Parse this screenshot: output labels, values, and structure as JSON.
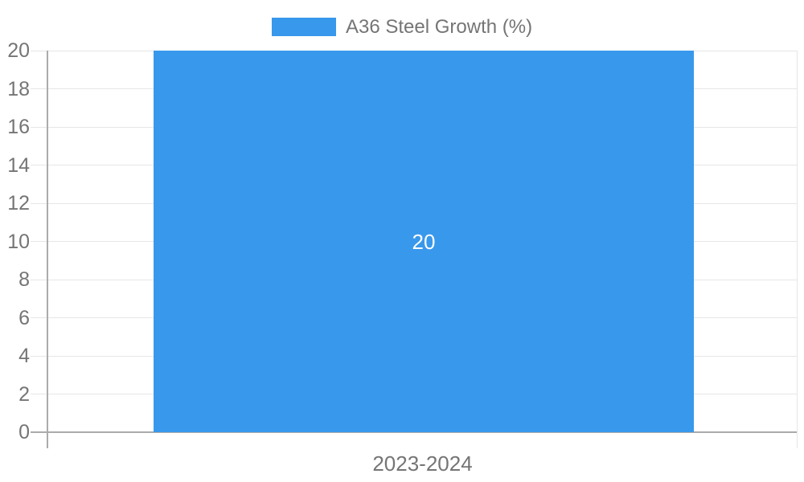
{
  "chart_data": {
    "type": "bar",
    "title": "",
    "categories": [
      "2023-2024"
    ],
    "series": [
      {
        "name": "A36 Steel Growth (%)",
        "values": [
          20
        ],
        "color": "#3898EC"
      }
    ],
    "data_labels": [
      "20"
    ],
    "xlabel": "",
    "ylabel": "",
    "ylim": [
      0,
      20
    ],
    "yticks": [
      0,
      2,
      4,
      6,
      8,
      10,
      12,
      14,
      16,
      18,
      20
    ],
    "grid": true,
    "legend_position": "top"
  },
  "colors": {
    "bar": "#3898EC",
    "text": "#757575",
    "grid": "#E6E6E6",
    "axis": "#ABABAB",
    "bar_label": "#FFFFFF"
  }
}
